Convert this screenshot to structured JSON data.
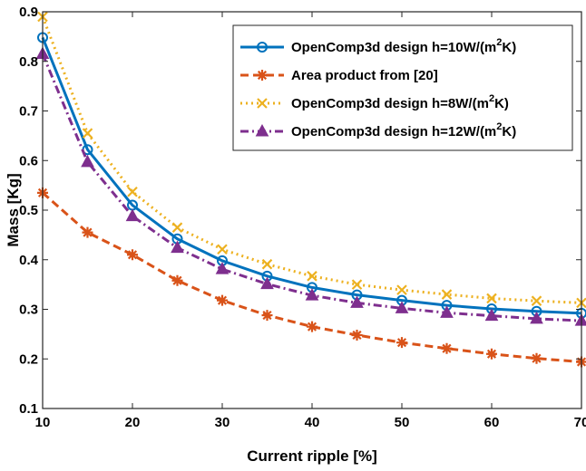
{
  "chart_data": {
    "type": "line",
    "title": "",
    "xlabel": "Current ripple [%]",
    "ylabel": "Mass [Kg]",
    "xlim": [
      10,
      70
    ],
    "ylim": [
      0.1,
      0.9
    ],
    "xticks": [
      10,
      20,
      30,
      40,
      50,
      60,
      70
    ],
    "yticks": [
      0.1,
      0.2,
      0.3,
      0.4,
      0.5,
      0.6,
      0.7,
      0.8,
      0.9
    ],
    "grid": false,
    "legend_position": "top-right",
    "x": [
      10,
      15,
      20,
      25,
      30,
      35,
      40,
      45,
      50,
      55,
      60,
      65,
      70
    ],
    "series": [
      {
        "name": "OpenComp3d design h=10W/(m",
        "name_sup": "2",
        "name_tail": "K)",
        "color": "#0072bd",
        "line_style": "solid",
        "marker": "circle",
        "values": [
          0.848,
          0.622,
          0.51,
          0.442,
          0.398,
          0.367,
          0.344,
          0.329,
          0.318,
          0.308,
          0.301,
          0.296,
          0.292
        ]
      },
      {
        "name": "Area product from [20]",
        "name_sup": "",
        "name_tail": "",
        "color": "#d95319",
        "line_style": "dashed",
        "marker": "asterisk",
        "values": [
          0.535,
          0.455,
          0.41,
          0.358,
          0.318,
          0.288,
          0.265,
          0.248,
          0.233,
          0.221,
          0.21,
          0.201,
          0.194
        ]
      },
      {
        "name": "OpenComp3d design h=8W/(m",
        "name_sup": "2",
        "name_tail": "K)",
        "color": "#edb120",
        "line_style": "dotted",
        "marker": "x",
        "values": [
          0.89,
          0.655,
          0.537,
          0.465,
          0.421,
          0.391,
          0.367,
          0.35,
          0.339,
          0.33,
          0.322,
          0.317,
          0.313
        ]
      },
      {
        "name": "OpenComp3d design h=12W/(m",
        "name_sup": "2",
        "name_tail": "K)",
        "color": "#7e2f8e",
        "line_style": "dashdot",
        "marker": "triangle",
        "values": [
          0.815,
          0.597,
          0.488,
          0.424,
          0.381,
          0.351,
          0.328,
          0.313,
          0.302,
          0.293,
          0.287,
          0.281,
          0.277
        ]
      }
    ]
  }
}
